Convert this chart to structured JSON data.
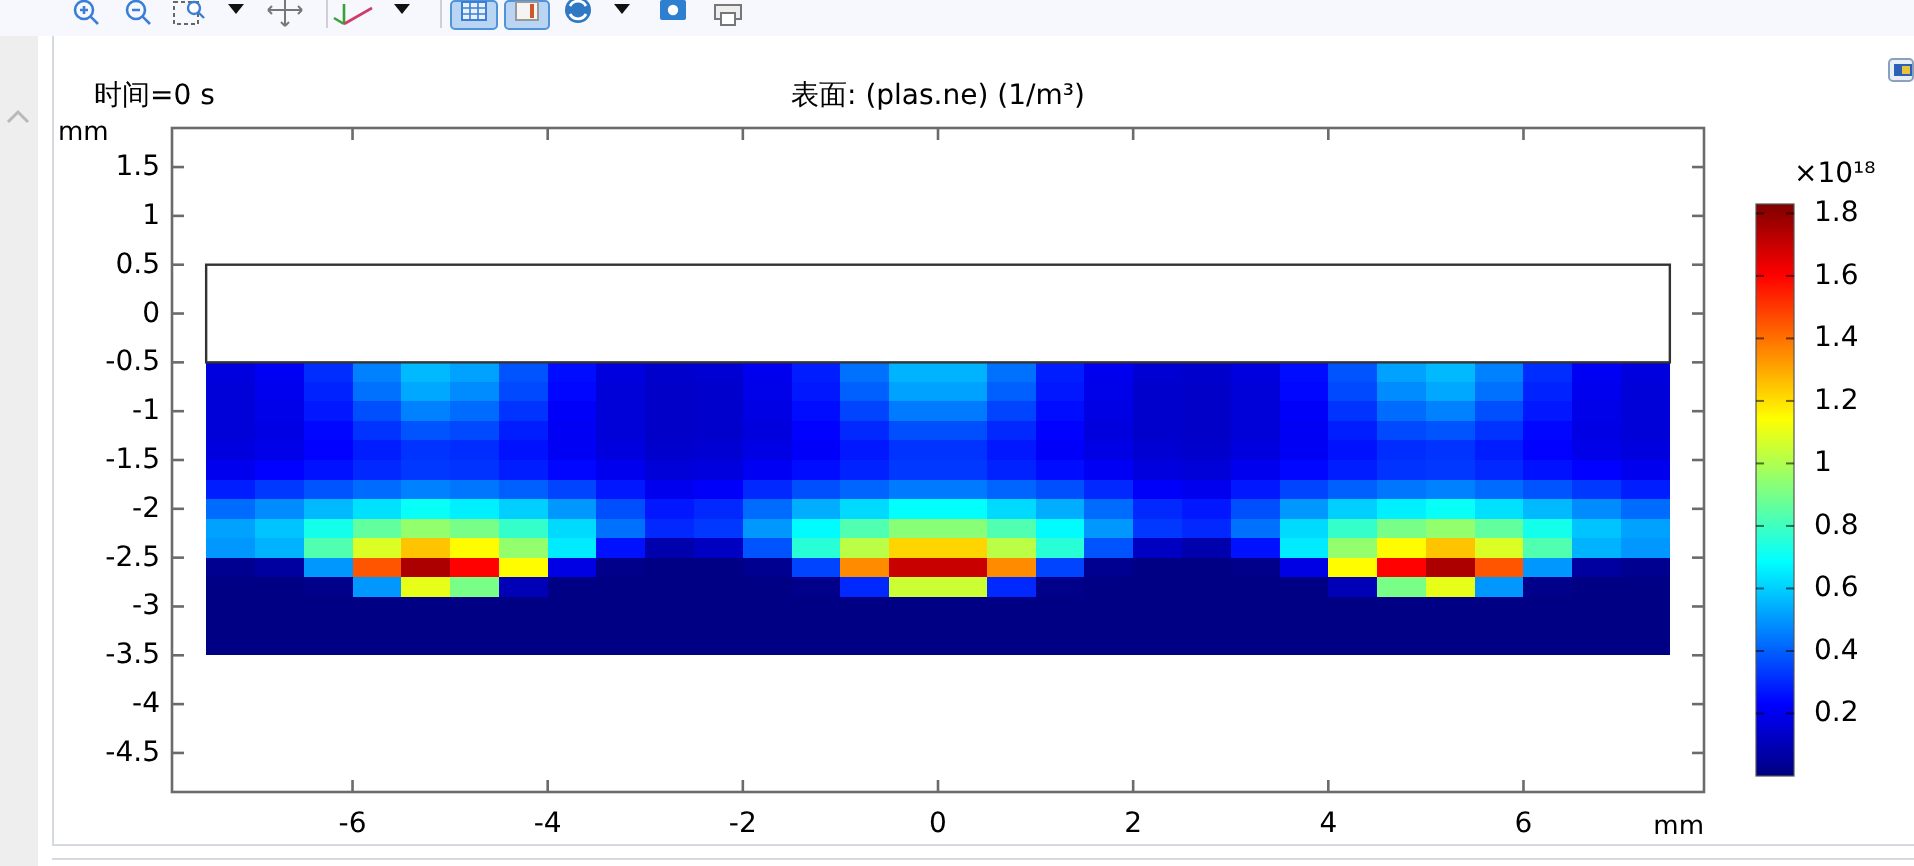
{
  "chart_data": {
    "type": "scatter",
    "marker": "square",
    "title": "表面: (plas.ne) (1/m³)",
    "subtitle": "时间=0 s",
    "xlabel": "mm",
    "ylabel": "mm",
    "clabel": "×10¹⁸",
    "x": [
      -7.25,
      -6.75,
      -6.25,
      -5.75,
      -5.25,
      -4.75,
      -4.25,
      -3.75,
      -3.25,
      -2.75,
      -2.25,
      -1.75,
      -1.25,
      -0.75,
      -0.25,
      0.25,
      0.75,
      1.25,
      1.75,
      2.25,
      2.75,
      3.25,
      3.75,
      4.25,
      4.75,
      5.25,
      5.75,
      6.25,
      6.75,
      7.25,
      -7.25,
      -6.75,
      -6.25,
      -5.75,
      -5.25,
      -4.75,
      -4.25,
      -3.75,
      -3.25,
      -2.75,
      -2.25,
      -1.75,
      -1.25,
      -0.75,
      -0.25,
      0.25,
      0.75,
      1.25,
      1.75,
      2.25,
      2.75,
      3.25,
      3.75,
      4.25,
      4.75,
      5.25,
      5.75,
      6.25,
      6.75,
      7.25,
      -7.25,
      -6.75,
      -6.25,
      -5.75,
      -5.25,
      -4.75,
      -4.25,
      -3.75,
      -3.25,
      -2.75,
      -2.25,
      -1.75,
      -1.25,
      -0.75,
      -0.25,
      0.25,
      0.75,
      1.25,
      1.75,
      2.25,
      2.75,
      3.25,
      3.75,
      4.25,
      4.75,
      5.25,
      5.75,
      6.25,
      6.75,
      7.25,
      -7.25,
      -6.75,
      -6.25,
      -5.75,
      -5.25,
      -4.75,
      -4.25,
      -3.75,
      -3.25,
      -2.75,
      -2.25,
      -1.75,
      -1.25,
      -0.75,
      -0.25,
      0.25,
      0.75,
      1.25,
      1.75,
      2.25,
      2.75,
      3.25,
      3.75,
      4.25,
      4.75,
      5.25,
      5.75,
      6.25,
      6.75,
      7.25,
      -7.25,
      -6.75,
      -6.25,
      -5.75,
      -5.25,
      -4.75,
      -4.25,
      -3.75,
      -3.25,
      -2.75,
      -2.25,
      -1.75,
      -1.25,
      -0.75,
      -0.25,
      0.25,
      0.75,
      1.25,
      1.75,
      2.25,
      2.75,
      3.25,
      3.75,
      4.25,
      4.75,
      5.25,
      5.75,
      6.25,
      6.75,
      7.25,
      -7.25,
      -6.75,
      -6.25,
      -5.75,
      -5.25,
      -4.75,
      -4.25,
      -3.75,
      -3.25,
      -2.75,
      -2.25,
      -1.75,
      -1.25,
      -0.75,
      -0.25,
      0.25,
      0.75,
      1.25,
      1.75,
      2.25,
      2.75,
      3.25,
      3.75,
      4.25,
      4.75,
      5.25,
      5.75,
      6.25,
      6.75,
      7.25,
      -7.25,
      -6.75,
      -6.25,
      -5.75,
      -5.25,
      -4.75,
      -4.25,
      -3.75,
      -3.25,
      -2.75,
      -2.25,
      -1.75,
      -1.25,
      -0.75,
      -0.25,
      0.25,
      0.75,
      1.25,
      1.75,
      2.25,
      2.75,
      3.25,
      3.75,
      4.25,
      4.75,
      5.25,
      5.75,
      6.25,
      6.75,
      7.25,
      -7.25,
      -6.75,
      -6.25,
      -5.75,
      -5.25,
      -4.75,
      -4.25,
      -3.75,
      -3.25,
      -2.75,
      -2.25,
      -1.75,
      -1.25,
      -0.75,
      -0.25,
      0.25,
      0.75,
      1.25,
      1.75,
      2.25,
      2.75,
      3.25,
      3.75,
      4.25,
      4.75,
      5.25,
      5.75,
      6.25,
      6.75,
      7.25,
      -7.25,
      -6.75,
      -6.25,
      -5.75,
      -5.25,
      -4.75,
      -4.25,
      -3.75,
      -3.25,
      -2.75,
      -2.25,
      -1.75,
      -1.25,
      -0.75,
      -0.25,
      0.25,
      0.75,
      1.25,
      1.75,
      2.25,
      2.75,
      3.25,
      3.75,
      4.25,
      4.75,
      5.25,
      5.75,
      6.25,
      6.75,
      7.25,
      -7.25,
      -6.75,
      -6.25,
      -5.75,
      -5.25,
      -4.75,
      -4.25,
      -3.75,
      -3.25,
      -2.75,
      -2.25,
      -1.75,
      -1.25,
      -0.75,
      -0.25,
      0.25,
      0.75,
      1.25,
      1.75,
      2.25,
      2.75,
      3.25,
      3.75,
      4.25,
      4.75,
      5.25,
      5.75,
      6.25,
      6.75,
      7.25,
      -7.25,
      -6.75,
      -6.25,
      -5.75,
      -5.25,
      -4.75,
      -4.25,
      -3.75,
      -3.25,
      -2.75,
      -2.25,
      -1.75,
      -1.25,
      -0.75,
      -0.25,
      0.25,
      0.75,
      1.25,
      1.75,
      2.25,
      2.75,
      3.25,
      3.75,
      4.25,
      4.75,
      5.25,
      5.75,
      6.25,
      6.75,
      7.25,
      -7.25,
      -6.75,
      -6.25,
      -5.75,
      -5.25,
      -4.75,
      -4.25,
      -3.75,
      -3.25,
      -2.75,
      -2.25,
      -1.75,
      -1.25,
      -0.75,
      -0.25,
      0.25,
      0.75,
      1.25,
      1.75,
      2.25,
      2.75,
      3.25,
      3.75,
      4.25,
      4.75,
      5.25,
      5.75,
      6.25,
      6.75,
      7.25,
      -7.25,
      -6.75,
      -6.25,
      -5.75,
      -5.25,
      -4.75,
      -4.25,
      -3.75,
      -3.25,
      -2.75,
      -2.25,
      -1.75,
      -1.25,
      -0.75,
      -0.25,
      0.25,
      0.75,
      1.25,
      1.75,
      2.25,
      2.75,
      3.25,
      3.75,
      4.25,
      4.75,
      5.25,
      5.75,
      6.25,
      6.75,
      7.25,
      -7.25,
      -6.75,
      -6.25,
      -5.75,
      -5.25,
      -4.75,
      -4.25,
      -3.75,
      -3.25,
      -2.75,
      -2.25,
      -1.75,
      -1.25,
      -0.75,
      -0.25,
      0.25,
      0.75,
      1.25,
      1.75,
      2.25,
      2.75,
      3.25,
      3.75,
      4.25,
      4.75,
      5.25,
      5.75,
      6.25,
      6.75,
      7.25,
      -7.25,
      -6.75,
      -6.25,
      -5.75,
      -5.25,
      -4.75,
      -4.25,
      -3.75,
      -3.25,
      -2.75,
      -2.25,
      -1.75,
      -1.25,
      -0.75,
      -0.25,
      0.25,
      0.75,
      1.25,
      1.75,
      2.25,
      2.75,
      3.25,
      3.75,
      4.25,
      4.75,
      5.25,
      5.75,
      6.25,
      6.75,
      7.25
    ],
    "values": [
      -0.6,
      -0.6,
      -0.6,
      -0.6,
      -0.6,
      -0.6,
      -0.6,
      -0.6,
      -0.6,
      -0.6,
      -0.6,
      -0.6,
      -0.6,
      -0.6,
      -0.6,
      -0.6,
      -0.6,
      -0.6,
      -0.6,
      -0.6,
      -0.6,
      -0.6,
      -0.6,
      -0.6,
      -0.6,
      -0.6,
      -0.6,
      -0.6,
      -0.6,
      -0.6,
      -0.8,
      -0.8,
      -0.8,
      -0.8,
      -0.8,
      -0.8,
      -0.8,
      -0.8,
      -0.8,
      -0.8,
      -0.8,
      -0.8,
      -0.8,
      -0.8,
      -0.8,
      -0.8,
      -0.8,
      -0.8,
      -0.8,
      -0.8,
      -0.8,
      -0.8,
      -0.8,
      -0.8,
      -0.8,
      -0.8,
      -0.8,
      -0.8,
      -0.8,
      -0.8,
      -1,
      -1,
      -1,
      -1,
      -1,
      -1,
      -1,
      -1,
      -1,
      -1,
      -1,
      -1,
      -1,
      -1,
      -1,
      -1,
      -1,
      -1,
      -1,
      -1,
      -1,
      -1,
      -1,
      -1,
      -1,
      -1,
      -1,
      -1,
      -1,
      -1,
      -1.2,
      -1.2,
      -1.2,
      -1.2,
      -1.2,
      -1.2,
      -1.2,
      -1.2,
      -1.2,
      -1.2,
      -1.2,
      -1.2,
      -1.2,
      -1.2,
      -1.2,
      -1.2,
      -1.2,
      -1.2,
      -1.2,
      -1.2,
      -1.2,
      -1.2,
      -1.2,
      -1.2,
      -1.2,
      -1.2,
      -1.2,
      -1.2,
      -1.2,
      -1.2,
      -1.4,
      -1.4,
      -1.4,
      -1.4,
      -1.4,
      -1.4,
      -1.4,
      -1.4,
      -1.4,
      -1.4,
      -1.4,
      -1.4,
      -1.4,
      -1.4,
      -1.4,
      -1.4,
      -1.4,
      -1.4,
      -1.4,
      -1.4,
      -1.4,
      -1.4,
      -1.4,
      -1.4,
      -1.4,
      -1.4,
      -1.4,
      -1.4,
      -1.4,
      -1.4,
      -1.6,
      -1.6,
      -1.6,
      -1.6,
      -1.6,
      -1.6,
      -1.6,
      -1.6,
      -1.6,
      -1.6,
      -1.6,
      -1.6,
      -1.6,
      -1.6,
      -1.6,
      -1.6,
      -1.6,
      -1.6,
      -1.6,
      -1.6,
      -1.6,
      -1.6,
      -1.6,
      -1.6,
      -1.6,
      -1.6,
      -1.6,
      -1.6,
      -1.6,
      -1.6,
      -1.8,
      -1.8,
      -1.8,
      -1.8,
      -1.8,
      -1.8,
      -1.8,
      -1.8,
      -1.8,
      -1.8,
      -1.8,
      -1.8,
      -1.8,
      -1.8,
      -1.8,
      -1.8,
      -1.8,
      -1.8,
      -1.8,
      -1.8,
      -1.8,
      -1.8,
      -1.8,
      -1.8,
      -1.8,
      -1.8,
      -1.8,
      -1.8,
      -1.8,
      -1.8,
      -2,
      -2,
      -2,
      -2,
      -2,
      -2,
      -2,
      -2,
      -2,
      -2,
      -2,
      -2,
      -2,
      -2,
      -2,
      -2,
      -2,
      -2,
      -2,
      -2,
      -2,
      -2,
      -2,
      -2,
      -2,
      -2,
      -2,
      -2,
      -2,
      -2,
      -2.2,
      -2.2,
      -2.2,
      -2.2,
      -2.2,
      -2.2,
      -2.2,
      -2.2,
      -2.2,
      -2.2,
      -2.2,
      -2.2,
      -2.2,
      -2.2,
      -2.2,
      -2.2,
      -2.2,
      -2.2,
      -2.2,
      -2.2,
      -2.2,
      -2.2,
      -2.2,
      -2.2,
      -2.2,
      -2.2,
      -2.2,
      -2.2,
      -2.2,
      -2.2,
      -2.4,
      -2.4,
      -2.4,
      -2.4,
      -2.4,
      -2.4,
      -2.4,
      -2.4,
      -2.4,
      -2.4,
      -2.4,
      -2.4,
      -2.4,
      -2.4,
      -2.4,
      -2.4,
      -2.4,
      -2.4,
      -2.4,
      -2.4,
      -2.4,
      -2.4,
      -2.4,
      -2.4,
      -2.4,
      -2.4,
      -2.4,
      -2.4,
      -2.4,
      -2.4,
      -2.6,
      -2.6,
      -2.6,
      -2.6,
      -2.6,
      -2.6,
      -2.6,
      -2.6,
      -2.6,
      -2.6,
      -2.6,
      -2.6,
      -2.6,
      -2.6,
      -2.6,
      -2.6,
      -2.6,
      -2.6,
      -2.6,
      -2.6,
      -2.6,
      -2.6,
      -2.6,
      -2.6,
      -2.6,
      -2.6,
      -2.6,
      -2.6,
      -2.6,
      -2.6,
      -2.8,
      -2.8,
      -2.8,
      -2.8,
      -2.8,
      -2.8,
      -2.8,
      -2.8,
      -2.8,
      -2.8,
      -2.8,
      -2.8,
      -2.8,
      -2.8,
      -2.8,
      -2.8,
      -2.8,
      -2.8,
      -2.8,
      -2.8,
      -2.8,
      -2.8,
      -2.8,
      -2.8,
      -2.8,
      -2.8,
      -2.8,
      -2.8,
      -2.8,
      -2.8,
      -3,
      -3,
      -3,
      -3,
      -3,
      -3,
      -3,
      -3,
      -3,
      -3,
      -3,
      -3,
      -3,
      -3,
      -3,
      -3,
      -3,
      -3,
      -3,
      -3,
      -3,
      -3,
      -3,
      -3,
      -3,
      -3,
      -3,
      -3,
      -3,
      -3,
      -3.2,
      -3.2,
      -3.2,
      -3.2,
      -3.2,
      -3.2,
      -3.2,
      -3.2,
      -3.2,
      -3.2,
      -3.2,
      -3.2,
      -3.2,
      -3.2,
      -3.2,
      -3.2,
      -3.2,
      -3.2,
      -3.2,
      -3.2,
      -3.2,
      -3.2,
      -3.2,
      -3.2,
      -3.2,
      -3.2,
      -3.2,
      -3.2,
      -3.2,
      -3.2,
      -3.4,
      -3.4,
      -3.4,
      -3.4,
      -3.4,
      -3.4,
      -3.4,
      -3.4,
      -3.4,
      -3.4,
      -3.4,
      -3.4,
      -3.4,
      -3.4,
      -3.4,
      -3.4,
      -3.4,
      -3.4,
      -3.4,
      -3.4,
      -3.4,
      -3.4,
      -3.4,
      -3.4,
      -3.4,
      -3.4,
      -3.4,
      -3.4,
      -3.4,
      -3.4
    ],
    "cvalues": [
      0.17,
      0.21,
      0.31,
      0.46,
      0.56,
      0.52,
      0.38,
      0.25,
      0.17,
      0.14,
      0.15,
      0.2,
      0.28,
      0.43,
      0.55,
      0.55,
      0.43,
      0.28,
      0.2,
      0.15,
      0.14,
      0.17,
      0.25,
      0.38,
      0.52,
      0.56,
      0.46,
      0.31,
      0.21,
      0.17,
      0.16,
      0.2,
      0.29,
      0.43,
      0.53,
      0.48,
      0.36,
      0.24,
      0.16,
      0.13,
      0.14,
      0.19,
      0.27,
      0.4,
      0.52,
      0.52,
      0.4,
      0.27,
      0.19,
      0.14,
      0.13,
      0.16,
      0.24,
      0.36,
      0.48,
      0.53,
      0.43,
      0.29,
      0.2,
      0.16,
      0.16,
      0.19,
      0.27,
      0.37,
      0.46,
      0.42,
      0.32,
      0.22,
      0.16,
      0.13,
      0.14,
      0.18,
      0.25,
      0.35,
      0.45,
      0.45,
      0.35,
      0.25,
      0.18,
      0.14,
      0.13,
      0.16,
      0.22,
      0.32,
      0.42,
      0.46,
      0.37,
      0.27,
      0.19,
      0.16,
      0.16,
      0.18,
      0.24,
      0.32,
      0.38,
      0.36,
      0.28,
      0.21,
      0.16,
      0.13,
      0.14,
      0.17,
      0.23,
      0.3,
      0.37,
      0.37,
      0.3,
      0.23,
      0.17,
      0.14,
      0.13,
      0.16,
      0.21,
      0.28,
      0.36,
      0.38,
      0.32,
      0.24,
      0.18,
      0.16,
      0.17,
      0.19,
      0.23,
      0.28,
      0.32,
      0.31,
      0.26,
      0.21,
      0.17,
      0.14,
      0.15,
      0.18,
      0.22,
      0.27,
      0.32,
      0.32,
      0.27,
      0.22,
      0.18,
      0.15,
      0.14,
      0.17,
      0.21,
      0.26,
      0.31,
      0.32,
      0.28,
      0.23,
      0.19,
      0.17,
      0.2,
      0.23,
      0.26,
      0.3,
      0.33,
      0.32,
      0.28,
      0.24,
      0.2,
      0.16,
      0.17,
      0.21,
      0.25,
      0.29,
      0.33,
      0.33,
      0.29,
      0.25,
      0.21,
      0.17,
      0.16,
      0.2,
      0.24,
      0.28,
      0.32,
      0.33,
      0.3,
      0.26,
      0.23,
      0.2,
      0.28,
      0.33,
      0.38,
      0.42,
      0.46,
      0.44,
      0.4,
      0.35,
      0.27,
      0.2,
      0.22,
      0.3,
      0.37,
      0.41,
      0.45,
      0.45,
      0.41,
      0.37,
      0.3,
      0.22,
      0.2,
      0.27,
      0.35,
      0.4,
      0.44,
      0.46,
      0.42,
      0.38,
      0.33,
      0.28,
      0.42,
      0.48,
      0.56,
      0.63,
      0.7,
      0.66,
      0.6,
      0.5,
      0.37,
      0.27,
      0.3,
      0.42,
      0.54,
      0.62,
      0.69,
      0.69,
      0.62,
      0.54,
      0.42,
      0.3,
      0.27,
      0.37,
      0.5,
      0.6,
      0.66,
      0.7,
      0.63,
      0.56,
      0.48,
      0.42,
      0.52,
      0.58,
      0.72,
      0.86,
      0.95,
      0.9,
      0.78,
      0.62,
      0.43,
      0.3,
      0.33,
      0.5,
      0.68,
      0.83,
      0.93,
      0.93,
      0.83,
      0.68,
      0.5,
      0.33,
      0.3,
      0.43,
      0.62,
      0.78,
      0.9,
      0.95,
      0.86,
      0.72,
      0.58,
      0.52,
      0.5,
      0.55,
      0.83,
      1.08,
      1.25,
      1.15,
      0.95,
      0.65,
      0.26,
      0.08,
      0.12,
      0.38,
      0.76,
      1.02,
      1.22,
      1.22,
      1.02,
      0.76,
      0.38,
      0.12,
      0.08,
      0.26,
      0.65,
      0.95,
      1.15,
      1.25,
      1.08,
      0.83,
      0.55,
      0.5,
      0.03,
      0.06,
      0.5,
      1.45,
      1.75,
      1.6,
      1.15,
      0.18,
      0.02,
      0.01,
      0.01,
      0.03,
      0.35,
      1.35,
      1.7,
      1.7,
      1.35,
      0.35,
      0.03,
      0.01,
      0.01,
      0.02,
      0.18,
      1.15,
      1.6,
      1.75,
      1.45,
      0.5,
      0.06,
      0.03,
      0.01,
      0.01,
      0.02,
      0.5,
      1.1,
      0.9,
      0.1,
      0.01,
      0.01,
      0.01,
      0.01,
      0.01,
      0.02,
      0.3,
      1.05,
      1.05,
      0.3,
      0.02,
      0.01,
      0.01,
      0.01,
      0.01,
      0.01,
      0.1,
      0.9,
      1.1,
      0.5,
      0.02,
      0.01,
      0.01,
      0.01,
      0.01,
      0.01,
      0.01,
      0.01,
      0.01,
      0.01,
      0.01,
      0.01,
      0.01,
      0.01,
      0.01,
      0.01,
      0.01,
      0.01,
      0.01,
      0.01,
      0.01,
      0.01,
      0.01,
      0.01,
      0.01,
      0.01,
      0.01,
      0.01,
      0.01,
      0.01,
      0.01,
      0.01,
      0.01,
      0.01,
      0.01,
      0.01,
      0.01,
      0.01,
      0.01,
      0.01,
      0.01,
      0.01,
      0.01,
      0.01,
      0.01,
      0.01,
      0.01,
      0.01,
      0.01,
      0.01,
      0.01,
      0.01,
      0.01,
      0.01,
      0.01,
      0.01,
      0.01,
      0.01,
      0.01,
      0.01,
      0.01,
      0.01,
      0.01,
      0.01,
      0.01,
      0.01,
      0.01,
      0.01,
      0.01,
      0.01,
      0.01,
      0.01,
      0.01,
      0.01,
      0.01,
      0.01,
      0.01,
      0.01,
      0.01,
      0.01,
      0.01,
      0.01,
      0.01,
      0.01,
      0.01,
      0.01,
      0.01,
      0.01,
      0.01,
      0.01,
      0.01,
      0.01,
      0.01
    ],
    "clim": [
      0,
      1.83
    ],
    "cticks": [
      0.2,
      0.4,
      0.6,
      0.8,
      1,
      1.2,
      1.4,
      1.6,
      1.8
    ],
    "xlim": [
      -7.85,
      7.85
    ],
    "ylim": [
      -4.9,
      1.9
    ],
    "xticks": [
      -6,
      -4,
      -2,
      0,
      2,
      4,
      6
    ],
    "yticks": [
      -4.5,
      -4,
      -3.5,
      -3,
      -2.5,
      -2,
      -1.5,
      -1,
      -0.5,
      0,
      0.5,
      1,
      1.5
    ],
    "bands": [
      {
        "axis": "y",
        "from": -0.5,
        "to": 0.5,
        "color": "#ffffff"
      }
    ]
  }
}
